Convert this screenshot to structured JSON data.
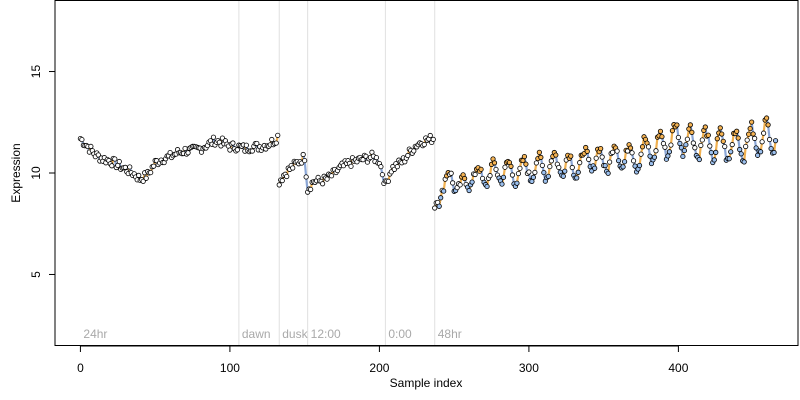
{
  "chart_data": {
    "type": "line",
    "title": "",
    "xlabel": "Sample index",
    "ylabel": "Expression",
    "xlim": [
      -17,
      480
    ],
    "ylim": [
      1.5,
      18.5
    ],
    "xticks": [
      "0",
      "100",
      "200",
      "300",
      "400"
    ],
    "yticks": [
      "5",
      "10",
      "15"
    ],
    "grid": false,
    "legend": "none",
    "colors": {
      "line_blue": "#8aa6d6",
      "line_orange": "#f0b050",
      "point_blue": "#9cc0ee",
      "point_orange": "#f6b454",
      "point_white": "#ffffff",
      "separator": "#e0e0e0",
      "segment_text": "#a9a9a9"
    },
    "segments": [
      {
        "label": "24hr",
        "x": 0
      },
      {
        "label": "dawn",
        "x": 106
      },
      {
        "label": "dusk",
        "x": 133
      },
      {
        "label": "12:00",
        "x": 152
      },
      {
        "label": "0:00",
        "x": 204
      },
      {
        "label": "48hr",
        "x": 237
      }
    ],
    "series": [
      {
        "anchors": [
          [
            0,
            11.7
          ],
          [
            5,
            11.3
          ],
          [
            10,
            10.9
          ],
          [
            15,
            10.7
          ],
          [
            20,
            10.6
          ],
          [
            25,
            10.4
          ],
          [
            30,
            10.2
          ],
          [
            35,
            10.0
          ],
          [
            40,
            9.7
          ],
          [
            45,
            9.9
          ],
          [
            50,
            10.5
          ],
          [
            55,
            10.7
          ],
          [
            60,
            10.8
          ],
          [
            65,
            11.0
          ],
          [
            70,
            11.1
          ],
          [
            75,
            11.1
          ],
          [
            80,
            11.2
          ],
          [
            85,
            11.4
          ],
          [
            90,
            11.6
          ],
          [
            95,
            11.5
          ],
          [
            100,
            11.3
          ],
          [
            105,
            11.3
          ],
          [
            110,
            11.2
          ],
          [
            115,
            11.3
          ],
          [
            120,
            11.3
          ],
          [
            125,
            11.4
          ],
          [
            130,
            11.6
          ],
          [
            132,
            11.8
          ],
          [
            133,
            9.6
          ],
          [
            136,
            9.9
          ],
          [
            140,
            10.2
          ],
          [
            145,
            10.5
          ],
          [
            150,
            10.8
          ],
          [
            152,
            9.2
          ],
          [
            156,
            9.6
          ],
          [
            160,
            9.6
          ],
          [
            165,
            9.7
          ],
          [
            170,
            10.0
          ],
          [
            175,
            10.3
          ],
          [
            180,
            10.5
          ],
          [
            185,
            10.6
          ],
          [
            190,
            10.7
          ],
          [
            195,
            10.8
          ],
          [
            200,
            10.6
          ],
          [
            204,
            9.4
          ],
          [
            208,
            10.2
          ],
          [
            212,
            10.4
          ],
          [
            216,
            10.6
          ],
          [
            220,
            11.0
          ],
          [
            225,
            11.4
          ],
          [
            230,
            11.6
          ],
          [
            236,
            11.7
          ],
          [
            237,
            8.4
          ],
          [
            242,
            9.3
          ],
          [
            248,
            9.8
          ],
          [
            255,
            9.2
          ],
          [
            262,
            9.9
          ],
          [
            270,
            9.8
          ],
          [
            280,
            10.1
          ],
          [
            290,
            10.0
          ],
          [
            300,
            10.2
          ],
          [
            310,
            10.3
          ],
          [
            320,
            10.5
          ],
          [
            330,
            10.3
          ],
          [
            340,
            10.7
          ],
          [
            350,
            10.6
          ],
          [
            360,
            10.9
          ],
          [
            370,
            10.8
          ],
          [
            380,
            11.1
          ],
          [
            390,
            11.4
          ],
          [
            400,
            11.8
          ],
          [
            410,
            11.5
          ],
          [
            420,
            11.4
          ],
          [
            430,
            11.3
          ],
          [
            440,
            11.4
          ],
          [
            450,
            11.6
          ],
          [
            460,
            11.8
          ],
          [
            465,
            11.9
          ]
        ]
      }
    ]
  }
}
